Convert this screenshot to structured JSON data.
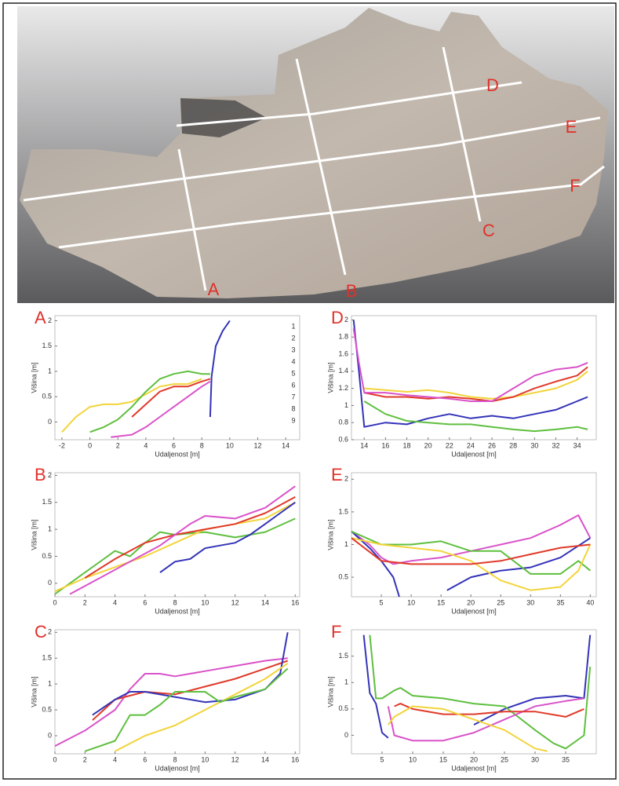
{
  "photo": {
    "labels": [
      "A",
      "B",
      "C",
      "D",
      "E",
      "F"
    ]
  },
  "chart_data": [
    {
      "type": "line",
      "panel_label": "A",
      "xlabel": "Udaljenost [m]",
      "ylabel": "Višina [m]",
      "xlim": [
        -2.5,
        15
      ],
      "ylim": [
        -0.35,
        2.1
      ],
      "xticks": [
        -2,
        0,
        2,
        4,
        6,
        8,
        10,
        12,
        14
      ],
      "yticks": [
        0,
        0.5,
        1,
        1.5,
        2
      ],
      "annotations": [
        "1",
        "2",
        "3",
        "4",
        "5",
        "6",
        "7",
        "8",
        "9"
      ],
      "series": [
        {
          "color": "#f2d43a",
          "x": [
            -2,
            -1,
            0,
            1,
            2,
            3,
            4,
            5,
            6,
            7,
            8
          ],
          "values": [
            -0.2,
            0.1,
            0.3,
            0.35,
            0.35,
            0.4,
            0.55,
            0.7,
            0.75,
            0.75,
            0.85
          ]
        },
        {
          "color": "#5fbf3f",
          "x": [
            0,
            1,
            2,
            3,
            4,
            5,
            6,
            7,
            8,
            8.6
          ],
          "values": [
            -0.2,
            -0.1,
            0.05,
            0.3,
            0.6,
            0.85,
            0.95,
            1.0,
            0.95,
            0.95
          ]
        },
        {
          "color": "#e03a2a",
          "x": [
            3,
            4,
            5,
            6,
            7,
            8,
            8.6
          ],
          "values": [
            0.1,
            0.35,
            0.6,
            0.7,
            0.7,
            0.8,
            0.85
          ]
        },
        {
          "color": "#d952c9",
          "x": [
            1.5,
            3,
            4,
            5,
            6,
            7,
            8,
            8.6
          ],
          "values": [
            -0.3,
            -0.25,
            -0.1,
            0.1,
            0.3,
            0.5,
            0.7,
            0.8
          ]
        },
        {
          "color": "#3333b8",
          "x": [
            8.6,
            8.7,
            9,
            9.5,
            10
          ],
          "values": [
            0.1,
            0.9,
            1.5,
            1.8,
            2.0
          ]
        }
      ]
    },
    {
      "type": "line",
      "panel_label": "D",
      "xlabel": "Udaljenost [m]",
      "ylabel": "Višina [m]",
      "xlim": [
        12.8,
        35.8
      ],
      "ylim": [
        0.6,
        2.05
      ],
      "xticks": [
        14,
        16,
        18,
        20,
        22,
        24,
        26,
        28,
        30,
        32,
        34
      ],
      "yticks": [
        0.6,
        0.8,
        1,
        1.2,
        1.4,
        1.6,
        1.8,
        2
      ],
      "series": [
        {
          "color": "#3333b8",
          "x": [
            13,
            13.5,
            14,
            16,
            18,
            20,
            22,
            24,
            26,
            28,
            30,
            32,
            34,
            35
          ],
          "values": [
            2.0,
            1.4,
            0.75,
            0.8,
            0.78,
            0.85,
            0.9,
            0.85,
            0.88,
            0.85,
            0.9,
            0.95,
            1.05,
            1.1
          ]
        },
        {
          "color": "#5fbf3f",
          "x": [
            14,
            16,
            18,
            20,
            22,
            24,
            26,
            28,
            30,
            32,
            34,
            35
          ],
          "values": [
            1.05,
            0.9,
            0.82,
            0.8,
            0.78,
            0.78,
            0.75,
            0.72,
            0.7,
            0.72,
            0.75,
            0.72
          ]
        },
        {
          "color": "#f2d43a",
          "x": [
            14,
            16,
            18,
            20,
            22,
            24,
            26,
            28,
            30,
            32,
            34,
            35
          ],
          "values": [
            1.2,
            1.18,
            1.16,
            1.18,
            1.15,
            1.1,
            1.08,
            1.1,
            1.15,
            1.2,
            1.3,
            1.4
          ]
        },
        {
          "color": "#e03a2a",
          "x": [
            14,
            16,
            18,
            20,
            22,
            24,
            26,
            28,
            30,
            32,
            34,
            35
          ],
          "values": [
            1.15,
            1.1,
            1.1,
            1.08,
            1.1,
            1.08,
            1.05,
            1.1,
            1.2,
            1.28,
            1.35,
            1.45
          ]
        },
        {
          "color": "#d952c9",
          "x": [
            13,
            13.5,
            14,
            16,
            18,
            20,
            22,
            24,
            26,
            28,
            30,
            32,
            34,
            35
          ],
          "values": [
            1.9,
            1.5,
            1.15,
            1.15,
            1.12,
            1.1,
            1.08,
            1.05,
            1.05,
            1.2,
            1.35,
            1.42,
            1.45,
            1.5
          ]
        }
      ]
    },
    {
      "type": "line",
      "panel_label": "B",
      "xlabel": "Udaljenost [m]",
      "ylabel": "Višina [m]",
      "xlim": [
        0,
        16.3
      ],
      "ylim": [
        -0.25,
        2.05
      ],
      "xticks": [
        0,
        2,
        4,
        6,
        8,
        10,
        12,
        14,
        16
      ],
      "yticks": [
        0,
        0.5,
        1,
        1.5,
        2
      ],
      "series": [
        {
          "color": "#5fbf3f",
          "x": [
            0,
            2,
            4,
            5,
            6,
            7,
            8,
            10,
            12,
            14,
            16
          ],
          "values": [
            -0.2,
            0.2,
            0.6,
            0.5,
            0.75,
            0.95,
            0.9,
            0.95,
            0.85,
            0.95,
            1.2
          ]
        },
        {
          "color": "#f2d43a",
          "x": [
            0,
            2,
            4,
            6,
            8,
            10,
            12,
            14,
            16
          ],
          "values": [
            -0.15,
            0.1,
            0.3,
            0.5,
            0.75,
            1.0,
            1.1,
            1.2,
            1.5
          ]
        },
        {
          "color": "#e03a2a",
          "x": [
            2,
            4,
            6,
            8,
            10,
            12,
            14,
            16
          ],
          "values": [
            0.1,
            0.45,
            0.75,
            0.9,
            1.0,
            1.1,
            1.3,
            1.6
          ]
        },
        {
          "color": "#d952c9",
          "x": [
            1,
            3,
            5,
            7,
            9,
            10,
            12,
            14,
            16
          ],
          "values": [
            -0.2,
            0.1,
            0.4,
            0.7,
            1.1,
            1.25,
            1.2,
            1.4,
            1.8
          ]
        },
        {
          "color": "#3333b8",
          "x": [
            7,
            8,
            9,
            10,
            11,
            12,
            13,
            14,
            15,
            16
          ],
          "values": [
            0.2,
            0.4,
            0.45,
            0.65,
            0.7,
            0.75,
            0.9,
            1.1,
            1.3,
            1.5
          ]
        }
      ]
    },
    {
      "type": "line",
      "panel_label": "E",
      "xlabel": "Udaljenost [m]",
      "ylabel": "Višina [m]",
      "xlim": [
        0,
        41
      ],
      "ylim": [
        0.2,
        2.1
      ],
      "xticks": [
        5,
        10,
        15,
        20,
        25,
        30,
        35,
        40
      ],
      "yticks": [
        0.5,
        1,
        1.5,
        2
      ],
      "series": [
        {
          "color": "#d952c9",
          "x": [
            0,
            3,
            5,
            7,
            10,
            15,
            20,
            25,
            30,
            35,
            38,
            40
          ],
          "values": [
            1.2,
            1.0,
            0.8,
            0.7,
            0.75,
            0.8,
            0.9,
            1.0,
            1.1,
            1.3,
            1.45,
            1.1
          ]
        },
        {
          "color": "#3333b8",
          "x": [
            0,
            3,
            5,
            7,
            8,
            12,
            16,
            20,
            25,
            30,
            35,
            40
          ],
          "values": [
            1.2,
            0.95,
            0.75,
            0.5,
            0.2,
            null,
            0.3,
            0.5,
            0.6,
            0.65,
            0.8,
            1.1
          ]
        },
        {
          "color": "#5fbf3f",
          "x": [
            0,
            5,
            10,
            15,
            20,
            25,
            30,
            35,
            38,
            40
          ],
          "values": [
            1.2,
            1.0,
            1.0,
            1.05,
            0.9,
            0.9,
            0.55,
            0.55,
            0.75,
            0.6
          ]
        },
        {
          "color": "#f2d43a",
          "x": [
            0,
            5,
            10,
            15,
            20,
            25,
            30,
            35,
            38,
            40
          ],
          "values": [
            1.1,
            1.0,
            0.95,
            0.9,
            0.75,
            0.45,
            0.3,
            0.35,
            0.6,
            1.0
          ]
        },
        {
          "color": "#e03a2a",
          "x": [
            0,
            5,
            10,
            15,
            20,
            25,
            30,
            35,
            40
          ],
          "values": [
            1.1,
            0.75,
            0.7,
            0.7,
            0.7,
            0.75,
            0.85,
            0.95,
            1.0
          ]
        }
      ]
    },
    {
      "type": "line",
      "panel_label": "C",
      "xlabel": "Udaljenost [m]",
      "ylabel": "Višina [m]",
      "xlim": [
        0,
        16.3
      ],
      "ylim": [
        -0.35,
        2.05
      ],
      "xticks": [
        0,
        2,
        4,
        6,
        8,
        10,
        12,
        14,
        16
      ],
      "yticks": [
        0,
        0.5,
        1,
        1.5,
        2
      ],
      "series": [
        {
          "color": "#d952c9",
          "x": [
            0,
            2,
            4,
            5,
            6,
            7,
            8,
            10,
            12,
            14,
            15.5
          ],
          "values": [
            -0.2,
            0.1,
            0.5,
            0.9,
            1.2,
            1.2,
            1.15,
            1.25,
            1.35,
            1.45,
            1.5
          ]
        },
        {
          "color": "#e03a2a",
          "x": [
            2.5,
            4,
            6,
            8,
            10,
            12,
            14,
            15.5
          ],
          "values": [
            0.3,
            0.7,
            0.85,
            0.8,
            0.95,
            1.1,
            1.3,
            1.45
          ]
        },
        {
          "color": "#3333b8",
          "x": [
            2.5,
            4,
            5,
            6,
            8,
            10,
            12,
            14,
            15,
            15.5
          ],
          "values": [
            0.4,
            0.7,
            0.85,
            0.85,
            0.75,
            0.65,
            0.7,
            0.9,
            1.2,
            2.0
          ]
        },
        {
          "color": "#f2d43a",
          "x": [
            4,
            6,
            8,
            10,
            12,
            14,
            15.5
          ],
          "values": [
            -0.3,
            0.0,
            0.2,
            0.5,
            0.8,
            1.1,
            1.4
          ]
        },
        {
          "color": "#5fbf3f",
          "x": [
            2,
            4,
            5,
            6,
            7,
            8,
            10,
            11,
            12,
            14,
            15.5
          ],
          "values": [
            -0.3,
            -0.1,
            0.4,
            0.4,
            0.6,
            0.85,
            0.85,
            0.65,
            0.75,
            0.9,
            1.3
          ]
        }
      ]
    },
    {
      "type": "line",
      "panel_label": "F",
      "xlabel": "Udaljenost [m]",
      "ylabel": "Višina [m]",
      "xlim": [
        0,
        40
      ],
      "ylim": [
        -0.35,
        2.0
      ],
      "xticks": [
        5,
        10,
        15,
        20,
        25,
        30,
        35
      ],
      "yticks": [
        0,
        0.5,
        1,
        1.5
      ],
      "series": [
        {
          "color": "#3333b8",
          "x": [
            2,
            3,
            4,
            5,
            6,
            15,
            20,
            25,
            30,
            35,
            38,
            39
          ],
          "values": [
            1.9,
            0.8,
            0.6,
            0.05,
            -0.05,
            null,
            0.2,
            0.5,
            0.7,
            0.75,
            0.7,
            1.9
          ]
        },
        {
          "color": "#5fbf3f",
          "x": [
            3,
            4,
            5,
            7,
            8,
            10,
            15,
            20,
            25,
            30,
            33,
            35,
            38,
            39
          ],
          "values": [
            1.9,
            0.7,
            0.7,
            0.85,
            0.9,
            0.75,
            0.7,
            0.6,
            0.55,
            0.1,
            -0.15,
            -0.25,
            0.0,
            1.3
          ]
        },
        {
          "color": "#d952c9",
          "x": [
            6,
            7,
            10,
            15,
            20,
            25,
            30,
            35,
            38
          ],
          "values": [
            0.55,
            0.0,
            -0.1,
            -0.1,
            0.05,
            0.3,
            0.55,
            0.65,
            0.7
          ]
        },
        {
          "color": "#e03a2a",
          "x": [
            7,
            8,
            10,
            15,
            20,
            25,
            30,
            35,
            38
          ],
          "values": [
            0.55,
            0.6,
            0.5,
            0.4,
            0.4,
            0.45,
            0.45,
            0.35,
            0.5
          ]
        },
        {
          "color": "#f2d43a",
          "x": [
            6,
            7,
            10,
            15,
            20,
            25,
            30,
            32
          ],
          "values": [
            0.2,
            0.35,
            0.55,
            0.5,
            0.3,
            0.1,
            -0.25,
            -0.3
          ]
        }
      ]
    }
  ]
}
